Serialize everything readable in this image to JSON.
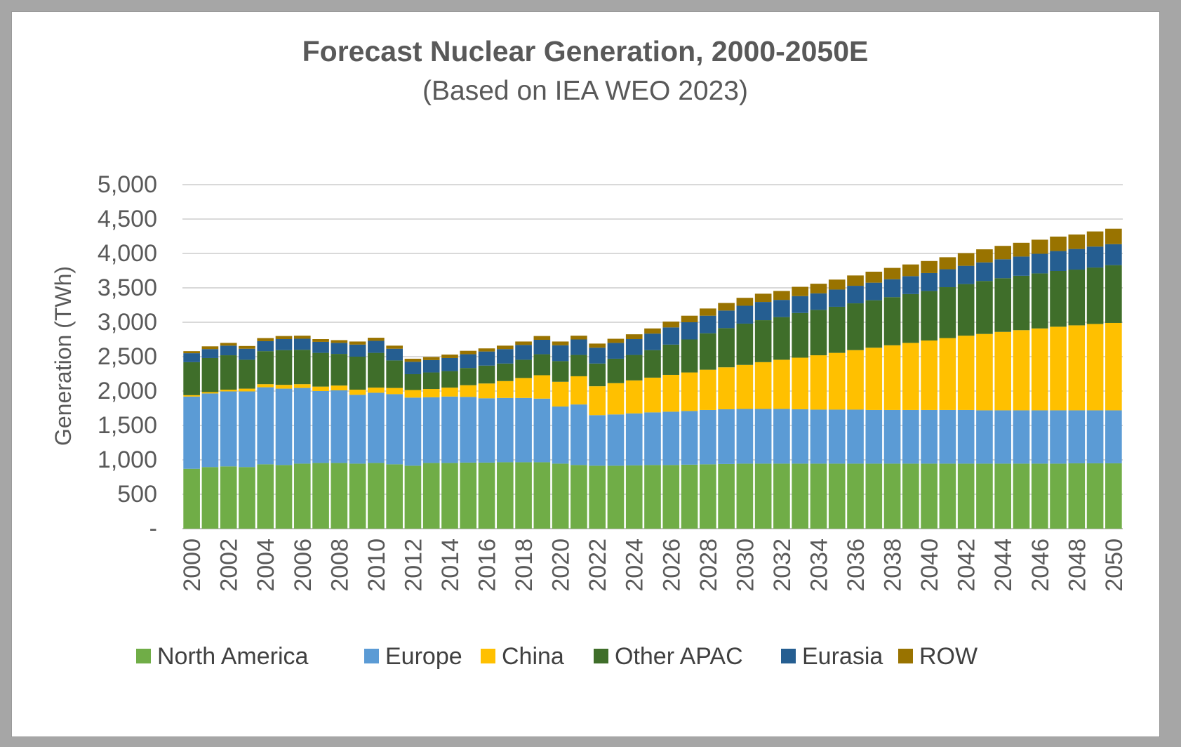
{
  "chart_data": {
    "type": "bar",
    "stacked": true,
    "title": "Forecast Nuclear Generation, 2000-2050E",
    "subtitle": "(Based on IEA WEO 2023)",
    "xlabel": "",
    "ylabel": "Generation (TWh)",
    "ylim": [
      0,
      5000
    ],
    "yticks": [
      0,
      500,
      1000,
      1500,
      2000,
      2500,
      3000,
      3500,
      4000,
      4500,
      5000
    ],
    "ytick_labels": [
      "-",
      "500",
      "1,000",
      "1,500",
      "2,000",
      "2,500",
      "3,000",
      "3,500",
      "4,000",
      "4,500",
      "5,000"
    ],
    "grid": true,
    "legend_position": "bottom",
    "categories": [
      2000,
      2001,
      2002,
      2003,
      2004,
      2005,
      2006,
      2007,
      2008,
      2009,
      2010,
      2011,
      2012,
      2013,
      2014,
      2015,
      2016,
      2017,
      2018,
      2019,
      2020,
      2021,
      2022,
      2023,
      2024,
      2025,
      2026,
      2027,
      2028,
      2029,
      2030,
      2031,
      2032,
      2033,
      2034,
      2035,
      2036,
      2037,
      2038,
      2039,
      2040,
      2041,
      2042,
      2043,
      2044,
      2045,
      2046,
      2047,
      2048,
      2049,
      2050
    ],
    "xtick_labels": [
      "2000",
      "2002",
      "2004",
      "2006",
      "2008",
      "2010",
      "2012",
      "2014",
      "2016",
      "2018",
      "2020",
      "2022",
      "2024",
      "2026",
      "2028",
      "2030",
      "2032",
      "2034",
      "2036",
      "2038",
      "2040",
      "2042",
      "2044",
      "2046",
      "2048",
      "2050"
    ],
    "series": [
      {
        "name": "North America",
        "color": "#70ad47",
        "values": [
          870,
          895,
          905,
          895,
          935,
          925,
          945,
          955,
          955,
          945,
          955,
          935,
          915,
          955,
          955,
          960,
          960,
          965,
          965,
          965,
          945,
          925,
          915,
          915,
          920,
          925,
          925,
          930,
          935,
          940,
          945,
          945,
          945,
          945,
          945,
          945,
          945,
          945,
          945,
          945,
          945,
          945,
          945,
          945,
          945,
          945,
          945,
          945,
          950,
          950,
          950
        ]
      },
      {
        "name": "Europe",
        "color": "#5b9bd5",
        "values": [
          1050,
          1070,
          1090,
          1100,
          1120,
          1110,
          1100,
          1045,
          1055,
          1000,
          1020,
          1020,
          990,
          955,
          965,
          955,
          935,
          935,
          935,
          925,
          830,
          880,
          735,
          745,
          755,
          765,
          775,
          780,
          790,
          795,
          795,
          795,
          795,
          790,
          785,
          785,
          785,
          780,
          780,
          780,
          780,
          780,
          780,
          775,
          775,
          775,
          775,
          775,
          770,
          770,
          770
        ]
      },
      {
        "name": "China",
        "color": "#ffc000",
        "values": [
          20,
          20,
          25,
          40,
          45,
          55,
          55,
          65,
          70,
          75,
          75,
          90,
          110,
          120,
          130,
          170,
          215,
          245,
          290,
          340,
          360,
          410,
          420,
          455,
          480,
          505,
          535,
          560,
          585,
          610,
          640,
          680,
          715,
          750,
          790,
          825,
          865,
          905,
          940,
          975,
          1010,
          1045,
          1080,
          1110,
          1140,
          1165,
          1190,
          1215,
          1235,
          1255,
          1270
        ]
      },
      {
        "name": "Other APAC",
        "color": "#3f6e2a",
        "values": [
          480,
          495,
          500,
          420,
          480,
          505,
          500,
          490,
          460,
          480,
          505,
          400,
          230,
          240,
          240,
          250,
          260,
          255,
          265,
          305,
          300,
          310,
          330,
          355,
          370,
          400,
          440,
          480,
          530,
          570,
          600,
          610,
          620,
          650,
          660,
          670,
          680,
          690,
          700,
          710,
          720,
          740,
          750,
          770,
          780,
          790,
          800,
          810,
          810,
          820,
          840
        ]
      },
      {
        "name": "Eurasia",
        "color": "#255e91",
        "values": [
          130,
          130,
          140,
          160,
          145,
          160,
          160,
          160,
          160,
          175,
          175,
          170,
          180,
          180,
          190,
          200,
          205,
          210,
          215,
          210,
          230,
          225,
          230,
          230,
          230,
          240,
          250,
          250,
          255,
          255,
          260,
          265,
          250,
          245,
          240,
          250,
          255,
          255,
          260,
          260,
          260,
          260,
          265,
          270,
          275,
          280,
          285,
          290,
          300,
          305,
          305
        ]
      },
      {
        "name": "ROW",
        "color": "#997300",
        "values": [
          30,
          40,
          40,
          40,
          45,
          45,
          45,
          40,
          40,
          45,
          45,
          45,
          45,
          45,
          50,
          50,
          45,
          50,
          50,
          55,
          55,
          55,
          60,
          60,
          70,
          75,
          85,
          95,
          105,
          110,
          115,
          120,
          130,
          135,
          140,
          145,
          150,
          160,
          165,
          170,
          175,
          175,
          185,
          190,
          195,
          200,
          205,
          210,
          210,
          220,
          225
        ]
      }
    ]
  }
}
